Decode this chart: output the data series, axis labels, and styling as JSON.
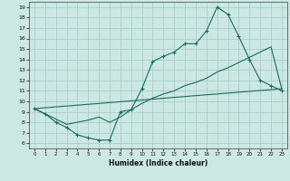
{
  "xlabel": "Humidex (Indice chaleur)",
  "xlim": [
    -0.5,
    23.5
  ],
  "ylim": [
    5.5,
    19.5
  ],
  "xticks": [
    0,
    1,
    2,
    3,
    4,
    5,
    6,
    7,
    8,
    9,
    10,
    11,
    12,
    13,
    14,
    15,
    16,
    17,
    18,
    19,
    20,
    21,
    22,
    23
  ],
  "yticks": [
    6,
    7,
    8,
    9,
    10,
    11,
    12,
    13,
    14,
    15,
    16,
    17,
    18,
    19
  ],
  "bg_color": "#cce8e2",
  "grid_color": "#aacfc8",
  "line_color": "#1a6b5a",
  "line1_x": [
    0,
    1,
    2,
    3,
    4,
    5,
    6,
    7,
    8,
    9,
    10,
    11,
    12,
    13,
    14,
    15,
    16,
    17,
    18,
    19,
    20,
    21,
    22,
    23
  ],
  "line1_y": [
    9.3,
    8.8,
    8.0,
    7.5,
    6.8,
    6.5,
    6.3,
    6.3,
    9.0,
    9.2,
    11.2,
    13.8,
    14.3,
    14.7,
    15.5,
    15.5,
    16.7,
    19.0,
    18.3,
    16.2,
    14.0,
    12.0,
    11.5,
    11.0
  ],
  "line2_x": [
    0,
    1,
    2,
    3,
    4,
    5,
    6,
    7,
    8,
    9,
    10,
    11,
    12,
    13,
    14,
    15,
    16,
    17,
    18,
    19,
    20,
    21,
    22,
    23
  ],
  "line2_y": [
    9.3,
    8.8,
    8.3,
    7.8,
    8.0,
    8.2,
    8.5,
    8.0,
    8.5,
    9.2,
    9.8,
    10.3,
    10.7,
    11.0,
    11.5,
    11.8,
    12.2,
    12.8,
    13.2,
    13.7,
    14.2,
    14.7,
    15.2,
    11.2
  ],
  "line3_x": [
    0,
    23
  ],
  "line3_y": [
    9.3,
    11.2
  ]
}
